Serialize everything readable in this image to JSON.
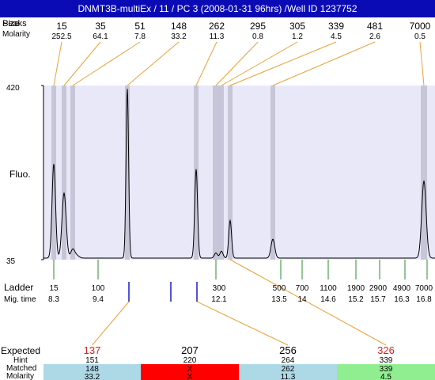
{
  "window": {
    "title": "DNMT3B-multiEx / 11 / PC 3 (2008-01-31 96hrs) /Well ID 1237752"
  },
  "labels": {
    "peaks_label": "Peaks",
    "size_label": "Size",
    "molarity_label": "Molarity",
    "fluo_label": "Fluo.",
    "ladder_label": "Ladder",
    "migtime_label": "Mig. time",
    "expected_label": "Expected",
    "hint_label": "Hint",
    "matched_label": "Matched",
    "molarity_bottom_label": "Molarity"
  },
  "colors": {
    "title_bg": "#0b0bb6",
    "plot_bg": "#e8e8f8",
    "band": "#c6c6d8",
    "trace": "#000000",
    "leader": "#e8a23a",
    "ladder_tick": "#2e8b2e",
    "sample_tick": "#1a1acc",
    "expected_red": "#dd2222",
    "cell_blue": "#add8e6",
    "cell_red": "#ff0000",
    "cell_green": "#90ee90"
  },
  "chart_data": {
    "type": "line",
    "title": "DNMT3B-multiEx / 11 / PC 3 (2008-01-31 96hrs) /Well ID 1237752",
    "ylabel": "Fluo.",
    "y_ticks": [
      "420",
      "35"
    ],
    "ylim": [
      35,
      420
    ],
    "peaks": [
      {
        "size": "15",
        "molarity": "252.5"
      },
      {
        "size": "35",
        "molarity": "64.1"
      },
      {
        "size": "51",
        "molarity": "7.8"
      },
      {
        "size": "148",
        "molarity": "33.2"
      },
      {
        "size": "262",
        "molarity": "11.3"
      },
      {
        "size": "295",
        "molarity": "0.8"
      },
      {
        "size": "305",
        "molarity": "1.2"
      },
      {
        "size": "339",
        "molarity": "4.5"
      },
      {
        "size": "481",
        "molarity": "2.6"
      },
      {
        "size": "7000",
        "molarity": "0.5"
      }
    ],
    "ladder": [
      {
        "size": "15",
        "mig_time": "8.3"
      },
      {
        "size": "100",
        "mig_time": "9.4"
      },
      {
        "size": "300",
        "mig_time": "12.1"
      },
      {
        "size": "500",
        "mig_time": "13.5"
      },
      {
        "size": "700",
        "mig_time": "14"
      },
      {
        "size": "1100",
        "mig_time": "14.6"
      },
      {
        "size": "1900",
        "mig_time": "15.2"
      },
      {
        "size": "2900",
        "mig_time": "15.7"
      },
      {
        "size": "4900",
        "mig_time": "16.3"
      },
      {
        "size": "7000",
        "mig_time": "16.8"
      }
    ],
    "expected": [
      {
        "expected": "137",
        "hint": "151",
        "matched": "148",
        "molarity": "33.2",
        "status": "matched",
        "highlight": true
      },
      {
        "expected": "207",
        "hint": "220",
        "matched": "X",
        "molarity": "X",
        "status": "missing",
        "highlight": false
      },
      {
        "expected": "256",
        "hint": "264",
        "matched": "262",
        "molarity": "11.3",
        "status": "matched",
        "highlight": false
      },
      {
        "expected": "326",
        "hint": "339",
        "matched": "339",
        "molarity": "4.5",
        "status": "ok",
        "highlight": true
      }
    ]
  }
}
